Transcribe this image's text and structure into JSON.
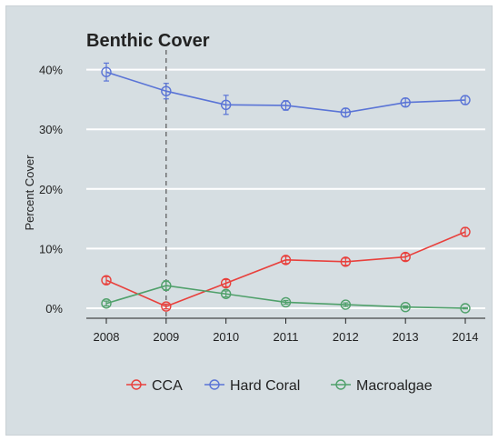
{
  "chart_data": {
    "type": "line",
    "title": "Benthic Cover",
    "xlabel": "",
    "ylabel": "Percent Cover",
    "x": [
      2008,
      2009,
      2010,
      2011,
      2012,
      2013,
      2014
    ],
    "x_tick_labels": [
      "2008",
      "2009",
      "2010",
      "2011",
      "2012",
      "2013",
      "2014"
    ],
    "ylim": [
      0,
      42
    ],
    "y_ticks": [
      0,
      10,
      20,
      30,
      40
    ],
    "y_tick_labels": [
      "0%",
      "10%",
      "20%",
      "30%",
      "40%"
    ],
    "grid": "horizontal",
    "legend_position": "bottom",
    "reference_line_x": 2009,
    "series": [
      {
        "name": "CCA",
        "color": "#e8403c",
        "values": [
          4.7,
          0.3,
          4.2,
          8.1,
          7.8,
          8.6,
          12.8
        ],
        "errors": [
          0.6,
          0.4,
          0.6,
          0.6,
          0.6,
          0.6,
          0.7
        ]
      },
      {
        "name": "Hard Coral",
        "color": "#5a74d6",
        "values": [
          39.6,
          36.4,
          34.1,
          34.0,
          32.8,
          34.5,
          34.9
        ],
        "errors": [
          1.5,
          1.3,
          1.6,
          0.8,
          0.7,
          0.7,
          0.7
        ]
      },
      {
        "name": "Macroalgae",
        "color": "#4fa06a",
        "values": [
          0.8,
          3.8,
          2.4,
          1.0,
          0.6,
          0.2,
          0.0
        ],
        "errors": [
          0.4,
          0.8,
          0.5,
          0.3,
          0.3,
          0.2,
          0.1
        ]
      }
    ]
  }
}
